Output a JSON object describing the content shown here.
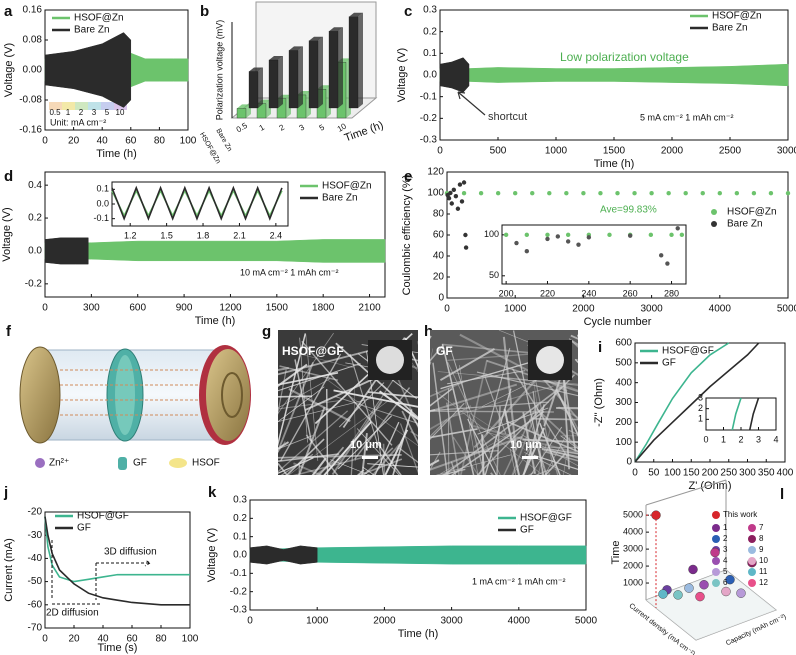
{
  "chart_data": [
    {
      "panel": "a",
      "type": "line",
      "xlabel": "Time (h)",
      "ylabel": "Voltage (V)",
      "xlim": [
        0,
        100
      ],
      "xticks": [
        0,
        20,
        40,
        60,
        80,
        100
      ],
      "ylim": [
        -0.16,
        0.16
      ],
      "yticks": [
        -0.16,
        -0.08,
        {
          "value": 0,
          "label": "0.00"
        },
        0.08,
        0.16
      ],
      "series": [
        {
          "name": "HSOF@Zn",
          "color": "#6cc36c",
          "x": [
            0,
            10,
            20,
            30,
            40,
            50,
            55,
            60,
            70,
            80,
            90,
            100
          ],
          "high": [
            0.03,
            0.035,
            0.035,
            0.04,
            0.045,
            0.05,
            0.06,
            0.045,
            0.03,
            0.03,
            0.03,
            0.03
          ],
          "low": [
            -0.03,
            -0.035,
            -0.035,
            -0.04,
            -0.045,
            -0.05,
            -0.06,
            -0.045,
            -0.03,
            -0.03,
            -0.03,
            -0.03
          ]
        },
        {
          "name": "Bare Zn",
          "color": "#2b2b2b",
          "x": [
            0,
            10,
            20,
            30,
            40,
            50,
            55,
            60
          ],
          "high": [
            0.04,
            0.045,
            0.05,
            0.06,
            0.07,
            0.09,
            0.1,
            0.08
          ],
          "low": [
            -0.04,
            -0.045,
            -0.05,
            -0.06,
            -0.07,
            -0.09,
            -0.1,
            -0.08
          ]
        }
      ],
      "rate_labels": [
        "0.5",
        "1",
        "2",
        "3",
        "5",
        "10"
      ],
      "rate_colors": [
        "#f6d9b8",
        "#f3e9a8",
        "#cfe8c0",
        "#bfe2e8",
        "#c6cdef",
        "#d9c3ea"
      ],
      "annotations": [
        "Unit: mA cm⁻²"
      ]
    },
    {
      "panel": "b",
      "type": "bar3d",
      "xlabel": "Time (h)",
      "ylabel": "Polarization voltage (mV)",
      "categories": [
        "0.5",
        "1",
        "2",
        "3",
        "5",
        "10"
      ],
      "ylim": [
        0,
        100
      ],
      "series": [
        {
          "name": "Bare Zn",
          "color": "#2b2b2b",
          "values": [
            38,
            50,
            60,
            70,
            80,
            95
          ]
        },
        {
          "name": "HSOF@Zn",
          "color": "#6cc36c",
          "values": [
            10,
            15,
            20,
            24,
            30,
            58
          ]
        }
      ]
    },
    {
      "panel": "c",
      "type": "line",
      "xlabel": "Time (h)",
      "ylabel": "Voltage (V)",
      "xlim": [
        0,
        3000
      ],
      "xticks": [
        0,
        500,
        1000,
        1500,
        2000,
        2500,
        3000
      ],
      "ylim": [
        -0.3,
        0.3
      ],
      "yticks": [
        -0.3,
        -0.2,
        -0.1,
        {
          "value": 0,
          "label": "0.0"
        },
        0.1,
        0.2,
        0.3
      ],
      "series": [
        {
          "name": "HSOF@Zn",
          "color": "#6cc36c",
          "x": [
            0,
            250,
            500,
            1000,
            1500,
            2000,
            2500,
            3000
          ],
          "high": [
            0.03,
            0.03,
            0.035,
            0.03,
            0.03,
            0.035,
            0.04,
            0.05
          ],
          "low": [
            -0.03,
            -0.03,
            -0.035,
            -0.03,
            -0.03,
            -0.035,
            -0.04,
            -0.05
          ]
        },
        {
          "name": "Bare Zn",
          "color": "#2b2b2b",
          "x": [
            0,
            100,
            200,
            250
          ],
          "high": [
            0.05,
            0.06,
            0.08,
            0.05
          ],
          "low": [
            -0.05,
            -0.06,
            -0.08,
            -0.05
          ]
        }
      ],
      "annotations": [
        "Low polarization voltage",
        "shortcut",
        "5 mA cm⁻²  1 mAh cm⁻²"
      ]
    },
    {
      "panel": "d",
      "type": "line",
      "xlabel": "Time (h)",
      "ylabel": "Voltage (V)",
      "xlim": [
        0,
        2200
      ],
      "xticks": [
        0,
        300,
        600,
        900,
        1200,
        1500,
        1800,
        2100
      ],
      "ylim": [
        -0.28,
        0.48
      ],
      "yticks": [
        -0.2,
        {
          "value": 0,
          "label": "0.0"
        },
        0.2,
        0.4
      ],
      "series": [
        {
          "name": "HSOF@Zn",
          "color": "#6cc36c",
          "x": [
            0,
            300,
            600,
            900,
            1200,
            1500,
            1800,
            2100,
            2200
          ],
          "high": [
            0.05,
            0.05,
            0.06,
            0.06,
            0.06,
            0.06,
            0.07,
            0.07,
            0.07
          ],
          "low": [
            -0.05,
            -0.05,
            -0.06,
            -0.06,
            -0.06,
            -0.06,
            -0.07,
            -0.07,
            -0.07
          ]
        },
        {
          "name": "Bare Zn",
          "color": "#2b2b2b",
          "x": [
            0,
            100,
            200,
            280
          ],
          "high": [
            0.07,
            0.08,
            0.08,
            0.08
          ],
          "low": [
            -0.07,
            -0.08,
            -0.08,
            -0.08
          ]
        }
      ],
      "annotations": [
        "10 mA cm⁻²  1 mAh cm⁻²"
      ],
      "inset": {
        "type": "line",
        "xlim": [
          1.05,
          2.5
        ],
        "xticks": [
          1.2,
          1.5,
          1.8,
          2.1,
          2.4
        ],
        "ylim": [
          -0.15,
          0.15
        ],
        "yticks": [
          -0.1,
          {
            "value": 0,
            "label": "0.0"
          },
          0.1
        ],
        "series": [
          {
            "name": "HSOF@Zn",
            "color": "#6cc36c",
            "x": [
              1.05,
              1.15,
              1.25,
              1.35,
              1.45,
              1.55,
              1.65,
              1.75,
              1.85,
              1.95,
              2.05,
              2.15,
              2.25,
              2.35,
              2.45
            ],
            "values": [
              0.09,
              -0.08,
              0.09,
              -0.08,
              0.09,
              -0.08,
              0.09,
              -0.08,
              0.09,
              -0.08,
              0.09,
              -0.08,
              0.09,
              -0.08,
              0.09
            ]
          },
          {
            "name": "Bare Zn",
            "color": "#2b2b2b",
            "x": [
              1.05,
              1.15,
              1.25,
              1.35,
              1.45,
              1.55,
              1.65,
              1.75,
              1.85,
              1.95,
              2.05,
              2.15,
              2.25,
              2.35,
              2.45
            ],
            "values": [
              0.11,
              -0.1,
              0.11,
              -0.1,
              0.11,
              -0.1,
              0.11,
              -0.1,
              0.11,
              -0.1,
              0.11,
              -0.1,
              0.11,
              -0.1,
              0.11
            ]
          }
        ]
      }
    },
    {
      "panel": "e",
      "type": "scatter",
      "xlabel": "Cycle number",
      "ylabel": "Coulombic efficiency (%)",
      "xlim": [
        0,
        5000
      ],
      "xticks": [
        0,
        1000,
        2000,
        3000,
        4000,
        5000
      ],
      "ylim": [
        0,
        120
      ],
      "yticks": [
        0,
        20,
        40,
        60,
        80,
        100,
        120
      ],
      "series": [
        {
          "name": "HSOF@Zn",
          "color": "#6cc36c",
          "x": [
            0,
            250,
            500,
            750,
            1000,
            1250,
            1500,
            1750,
            2000,
            2250,
            2500,
            2750,
            3000,
            3250,
            3500,
            3750,
            4000,
            4250,
            4500,
            4750,
            5000
          ],
          "values": [
            99.8,
            99.8,
            99.8,
            99.8,
            99.8,
            99.8,
            99.8,
            99.8,
            99.8,
            99.8,
            99.8,
            99.8,
            99.8,
            99.8,
            99.8,
            99.8,
            99.8,
            99.8,
            99.8,
            99.8,
            99.8
          ]
        },
        {
          "name": "Bare Zn",
          "color": "#333333",
          "x": [
            10,
            30,
            50,
            70,
            100,
            130,
            160,
            190,
            220,
            250,
            270,
            280
          ],
          "values": [
            98,
            95,
            100,
            90,
            103,
            97,
            85,
            108,
            92,
            110,
            60,
            48
          ]
        }
      ],
      "annotations": [
        "Ave=99.83%"
      ],
      "inset": {
        "type": "scatter",
        "xlim": [
          198,
          287
        ],
        "xticks": [
          200,
          220,
          240,
          260,
          280
        ],
        "ylim": [
          40,
          112
        ],
        "yticks": [
          50,
          100
        ],
        "series": [
          {
            "name": "HSOF@Zn",
            "color": "#6cc36c",
            "x": [
              200,
              210,
              220,
              230,
              240,
              250,
              260,
              270,
              280,
              285
            ],
            "values": [
              100,
              100,
              100,
              100,
              100,
              100,
              100,
              100,
              100,
              100
            ]
          },
          {
            "name": "Bare Zn",
            "color": "#555555",
            "x": [
              205,
              210,
              220,
              225,
              230,
              235,
              240,
              260,
              275,
              278,
              283
            ],
            "values": [
              90,
              80,
              95,
              98,
              92,
              88,
              97,
              99,
              75,
              65,
              108
            ]
          }
        ]
      }
    },
    {
      "panel": "i",
      "type": "line",
      "xlabel": "Z' (Ohm)",
      "ylabel": "-Z'' (Ohm)",
      "xlim": [
        0,
        400
      ],
      "xticks": [
        0,
        50,
        100,
        150,
        200,
        250,
        300,
        350,
        400
      ],
      "ylim": [
        0,
        600
      ],
      "yticks": [
        0,
        100,
        200,
        300,
        400,
        500,
        600
      ],
      "series": [
        {
          "name": "HSOF@GF",
          "color": "#3db58f",
          "x": [
            0,
            30,
            60,
            100,
            150,
            200,
            250
          ],
          "values": [
            0,
            90,
            190,
            320,
            450,
            540,
            600
          ]
        },
        {
          "name": "GF",
          "color": "#2b2b2b",
          "x": [
            0,
            50,
            100,
            150,
            200,
            250,
            300,
            330
          ],
          "values": [
            0,
            110,
            200,
            290,
            380,
            460,
            540,
            600
          ]
        }
      ],
      "inset": {
        "type": "line",
        "xlim": [
          0,
          4
        ],
        "xticks": [
          0,
          1,
          2,
          3,
          4
        ],
        "ylim": [
          0,
          3
        ],
        "yticks": [
          1,
          2,
          3
        ],
        "series": [
          {
            "name": "HSOF@GF",
            "color": "#3db58f",
            "x": [
              1.5,
              1.7,
              2.0
            ],
            "values": [
              0,
              1.5,
              3
            ]
          },
          {
            "name": "GF",
            "color": "#2b2b2b",
            "x": [
              2.5,
              2.7,
              3.0
            ],
            "values": [
              0,
              1.5,
              3
            ]
          }
        ]
      }
    },
    {
      "panel": "j",
      "type": "line",
      "xlabel": "Time (s)",
      "ylabel": "Current (mA)",
      "xlim": [
        0,
        100
      ],
      "xticks": [
        0,
        20,
        40,
        60,
        80,
        100
      ],
      "ylim": [
        -70,
        -20
      ],
      "yticks": [
        -70,
        -60,
        -50,
        -40,
        -30,
        -20
      ],
      "series": [
        {
          "name": "HSOF@GF",
          "color": "#3db58f",
          "x": [
            0,
            2,
            5,
            10,
            20,
            30,
            40,
            50,
            60,
            80,
            100
          ],
          "values": [
            -22,
            -35,
            -43,
            -48,
            -50,
            -49,
            -48,
            -47,
            -47,
            -47,
            -47
          ]
        },
        {
          "name": "GF",
          "color": "#2b2b2b",
          "x": [
            0,
            2,
            5,
            10,
            20,
            30,
            40,
            50,
            60,
            80,
            100
          ],
          "values": [
            -22,
            -30,
            -38,
            -45,
            -51,
            -55,
            -57,
            -58,
            -59,
            -60,
            -60
          ]
        }
      ],
      "annotations": [
        "3D diffusion",
        "2D diffusion"
      ]
    },
    {
      "panel": "k",
      "type": "line",
      "xlabel": "Time (h)",
      "ylabel": "Voltage (V)",
      "xlim": [
        0,
        5000
      ],
      "xticks": [
        0,
        1000,
        2000,
        3000,
        4000,
        5000
      ],
      "ylim": [
        -0.3,
        0.3
      ],
      "yticks": [
        -0.3,
        -0.2,
        -0.1,
        {
          "value": 0,
          "label": "0.0"
        },
        0.1,
        0.2,
        0.3
      ],
      "series": [
        {
          "name": "HSOF@GF",
          "color": "#3db58f",
          "x": [
            0,
            1000,
            2000,
            3000,
            4000,
            5000
          ],
          "high": [
            0.03,
            0.04,
            0.045,
            0.05,
            0.05,
            0.05
          ],
          "low": [
            -0.03,
            -0.04,
            -0.045,
            -0.05,
            -0.05,
            -0.05
          ]
        },
        {
          "name": "GF",
          "color": "#2b2b2b",
          "x": [
            0,
            250,
            500,
            750,
            1000
          ],
          "high": [
            0.04,
            0.05,
            0.03,
            0.05,
            0.04
          ],
          "low": [
            -0.04,
            -0.05,
            -0.03,
            -0.05,
            -0.04
          ]
        }
      ],
      "annotations": [
        "1 mA cm⁻²  1 mAh cm⁻²"
      ]
    },
    {
      "panel": "l",
      "type": "scatter3d",
      "ylabel": "Time",
      "xlabel": "Current density (mA cm⁻²)",
      "zlabel": "Capacity (mAh cm⁻²)",
      "ylim": [
        0,
        5600
      ],
      "yticks": [
        1000,
        2000,
        3000,
        4000,
        5000
      ],
      "series": [
        {
          "name": "This work",
          "color": "#d7262b",
          "values": [
            5000
          ]
        },
        {
          "name": "1",
          "color": "#7b2b8c",
          "values": [
            1800
          ]
        },
        {
          "name": "2",
          "color": "#2b5fb4",
          "values": [
            1200
          ]
        },
        {
          "name": "3",
          "color": "#6b3fa0",
          "values": [
            600
          ]
        },
        {
          "name": "4",
          "color": "#9a4fb0",
          "values": [
            900
          ]
        },
        {
          "name": "5",
          "color": "#b79ad8",
          "values": [
            400
          ]
        },
        {
          "name": "6",
          "color": "#7ac4c4",
          "values": [
            300
          ]
        },
        {
          "name": "7",
          "color": "#c03a8a",
          "values": [
            2800
          ]
        },
        {
          "name": "8",
          "color": "#8b1f5e",
          "values": [
            2200
          ]
        },
        {
          "name": "9",
          "color": "#9bbbe0",
          "values": [
            700
          ]
        },
        {
          "name": "10",
          "color": "#e4a6c7",
          "values": [
            500
          ]
        },
        {
          "name": "11",
          "color": "#5fb7c7",
          "values": [
            350
          ]
        },
        {
          "name": "12",
          "color": "#e8508a",
          "values": [
            200
          ]
        }
      ]
    }
  ],
  "figures": [
    {
      "panel": "f",
      "legend": [
        "Zn²⁺",
        "GF",
        "HSOF"
      ]
    },
    {
      "panel": "g",
      "label": "HSOF@GF",
      "scale": "10 μm"
    },
    {
      "panel": "h",
      "label": "GF",
      "scale": "10 μm"
    }
  ]
}
